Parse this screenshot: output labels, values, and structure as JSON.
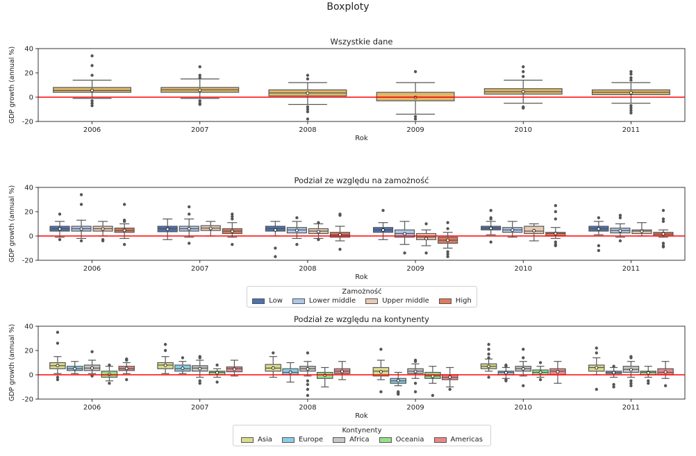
{
  "figure_title": "Boxploty",
  "chart_data": [
    {
      "type": "box",
      "title": "Wszystkie dane",
      "xlabel": "Rok",
      "ylabel": "GDP growth (annual %)",
      "categories": [
        "2006",
        "2007",
        "2008",
        "2009",
        "2010",
        "2011"
      ],
      "ylim": [
        -20,
        40
      ],
      "yticks": [
        -20,
        0,
        20,
        40
      ],
      "reference_line": 0,
      "reference_color": "#ff0000",
      "series": [
        {
          "color": "#e0b86a",
          "boxes": [
            {
              "whislo": -1,
              "q1": 4,
              "med": 5.5,
              "q3": 8,
              "whishi": 14,
              "mean": 5.6,
              "fliers": [
                -3,
                -5,
                -7,
                18,
                26,
                34
              ]
            },
            {
              "whislo": -1,
              "q1": 4,
              "med": 6,
              "q3": 8,
              "whishi": 15,
              "mean": 5.7,
              "fliers": [
                -3,
                -5,
                -6,
                16,
                18,
                25
              ]
            },
            {
              "whislo": -6,
              "q1": 1,
              "med": 3.5,
              "q3": 6,
              "whishi": 12,
              "mean": 3.3,
              "fliers": [
                -8,
                -10,
                -12,
                -18,
                15,
                18
              ]
            },
            {
              "whislo": -14,
              "q1": -3,
              "med": 0,
              "q3": 4,
              "whishi": 12,
              "mean": -0.2,
              "fliers": [
                -16,
                -18,
                21
              ]
            },
            {
              "whislo": -5,
              "q1": 2.5,
              "med": 4.5,
              "q3": 7,
              "whishi": 14,
              "mean": 4.5,
              "fliers": [
                -8,
                -9,
                17,
                21,
                25
              ]
            },
            {
              "whislo": -5,
              "q1": 2,
              "med": 4,
              "q3": 6,
              "whishi": 12,
              "mean": 3.7,
              "fliers": [
                -7,
                -9,
                -11,
                -13,
                14,
                16,
                19,
                21
              ]
            }
          ]
        }
      ]
    },
    {
      "type": "box",
      "title": "Podział ze względu na zamożność",
      "xlabel": "Rok",
      "ylabel": "GDP growth (annual %)",
      "categories": [
        "2006",
        "2007",
        "2008",
        "2009",
        "2010",
        "2011"
      ],
      "ylim": [
        -20,
        40
      ],
      "yticks": [
        -20,
        0,
        20,
        40
      ],
      "reference_line": 0,
      "reference_color": "#ff0000",
      "legend": {
        "title": "Zamożność",
        "placement": "below"
      },
      "series": [
        {
          "name": "Low",
          "color": "#4c72b0",
          "boxes": [
            {
              "whislo": -1,
              "q1": 4,
              "med": 6,
              "q3": 8,
              "whishi": 12,
              "mean": 5.8,
              "fliers": [
                -3,
                18
              ]
            },
            {
              "whislo": -3,
              "q1": 3.5,
              "med": 6,
              "q3": 8,
              "whishi": 14,
              "mean": 5.6,
              "fliers": []
            },
            {
              "whislo": 0,
              "q1": 4,
              "med": 6,
              "q3": 8,
              "whishi": 12,
              "mean": 5,
              "fliers": [
                -10,
                -17
              ]
            },
            {
              "whislo": -3,
              "q1": 3,
              "med": 5,
              "q3": 7,
              "whishi": 11,
              "mean": 4.9,
              "fliers": [
                21
              ]
            },
            {
              "whislo": 1,
              "q1": 5,
              "med": 6.5,
              "q3": 8,
              "whishi": 12,
              "mean": 6.3,
              "fliers": [
                -5,
                14,
                15,
                21
              ]
            },
            {
              "whislo": 1,
              "q1": 4,
              "med": 6,
              "q3": 8,
              "whishi": 12,
              "mean": 5.8,
              "fliers": [
                -8,
                -12,
                15
              ]
            }
          ]
        },
        {
          "name": "Lower middle",
          "color": "#aec7e8",
          "boxes": [
            {
              "whislo": -2,
              "q1": 4,
              "med": 6,
              "q3": 8,
              "whishi": 13,
              "mean": 5.7,
              "fliers": [
                -4,
                26,
                34
              ]
            },
            {
              "whislo": -1,
              "q1": 4,
              "med": 6,
              "q3": 8,
              "whishi": 14,
              "mean": 6,
              "fliers": [
                -6,
                18,
                24
              ]
            },
            {
              "whislo": -2,
              "q1": 2.5,
              "med": 5,
              "q3": 7,
              "whishi": 12,
              "mean": 4.6,
              "fliers": [
                -7,
                15
              ]
            },
            {
              "whislo": -7,
              "q1": -1,
              "med": 2,
              "q3": 5,
              "whishi": 12,
              "mean": 1.8,
              "fliers": [
                -14
              ]
            },
            {
              "whislo": -1,
              "q1": 3,
              "med": 5,
              "q3": 7,
              "whishi": 12,
              "mean": 4.8,
              "fliers": []
            },
            {
              "whislo": -1,
              "q1": 2.5,
              "med": 4.5,
              "q3": 6.5,
              "whishi": 10,
              "mean": 4.2,
              "fliers": [
                -4,
                15,
                17
              ]
            }
          ]
        },
        {
          "name": "Upper middle",
          "color": "#e8c9b3",
          "boxes": [
            {
              "whislo": 0,
              "q1": 4,
              "med": 6,
              "q3": 8,
              "whishi": 12,
              "mean": 5.7,
              "fliers": [
                -3,
                -4
              ]
            },
            {
              "whislo": 0,
              "q1": 4.5,
              "med": 6.5,
              "q3": 8.5,
              "whishi": 12,
              "mean": 6.2,
              "fliers": []
            },
            {
              "whislo": -2,
              "q1": 2,
              "med": 4,
              "q3": 6,
              "whishi": 10,
              "mean": 3.5,
              "fliers": [
                -3,
                11
              ]
            },
            {
              "whislo": -8,
              "q1": -3,
              "med": -1,
              "q3": 2,
              "whishi": 5,
              "mean": -2.2,
              "fliers": [
                -14,
                10
              ]
            },
            {
              "whislo": -4,
              "q1": 2,
              "med": 4,
              "q3": 8,
              "whishi": 10,
              "mean": 4.4,
              "fliers": []
            },
            {
              "whislo": 0,
              "q1": 2,
              "med": 4,
              "q3": 5,
              "whishi": 11,
              "mean": 3.9,
              "fliers": []
            }
          ]
        },
        {
          "name": "High",
          "color": "#e07b5b",
          "boxes": [
            {
              "whislo": -2,
              "q1": 3,
              "med": 4.5,
              "q3": 6.5,
              "whishi": 10,
              "mean": 4.6,
              "fliers": [
                -7,
                12,
                13,
                26
              ]
            },
            {
              "whislo": -1,
              "q1": 2,
              "med": 4,
              "q3": 6,
              "whishi": 11,
              "mean": 3.9,
              "fliers": [
                -7,
                14,
                16,
                18
              ]
            },
            {
              "whislo": -4,
              "q1": -1,
              "med": 1,
              "q3": 3,
              "whishi": 8,
              "mean": 1,
              "fliers": [
                -11,
                17,
                18
              ]
            },
            {
              "whislo": -10,
              "q1": -6,
              "med": -3.5,
              "q3": -1,
              "whishi": 3,
              "mean": -3.5,
              "fliers": [
                -13,
                -15,
                -17,
                6,
                11
              ]
            },
            {
              "whislo": -2,
              "q1": 0,
              "med": 2,
              "q3": 3,
              "whishi": 7,
              "mean": 2,
              "fliers": [
                -5,
                -7,
                -8,
                14,
                20,
                25
              ]
            },
            {
              "whislo": -1,
              "q1": 0,
              "med": 1.5,
              "q3": 3,
              "whishi": 5,
              "mean": 1.7,
              "fliers": [
                -6,
                -8,
                -9,
                12,
                14,
                21
              ]
            }
          ]
        }
      ]
    },
    {
      "type": "box",
      "title": "Podział ze względu na kontynenty",
      "xlabel": "Rok",
      "ylabel": "GDP growth (annual %)",
      "categories": [
        "2006",
        "2007",
        "2008",
        "2009",
        "2010",
        "2011"
      ],
      "ylim": [
        -20,
        40
      ],
      "yticks": [
        -20,
        0,
        20,
        40
      ],
      "reference_line": 0,
      "reference_color": "#ff0000",
      "legend": {
        "title": "Kontynenty",
        "placement": "below"
      },
      "series": [
        {
          "name": "Asia",
          "color": "#dbdb8d",
          "boxes": [
            {
              "whislo": 1,
              "q1": 5,
              "med": 7.5,
              "q3": 10,
              "whishi": 15,
              "mean": 7.6,
              "fliers": [
                -2,
                -4,
                26,
                35
              ]
            },
            {
              "whislo": 1,
              "q1": 5,
              "med": 8,
              "q3": 10,
              "whishi": 15,
              "mean": 7.8,
              "fliers": [
                20,
                25
              ]
            },
            {
              "whislo": -2,
              "q1": 3,
              "med": 5.5,
              "q3": 8.5,
              "whishi": 15,
              "mean": 5.6,
              "fliers": [
                18
              ]
            },
            {
              "whislo": -4,
              "q1": -1,
              "med": 3,
              "q3": 6,
              "whishi": 12,
              "mean": 2.4,
              "fliers": [
                -14,
                21
              ]
            },
            {
              "whislo": 3,
              "q1": 5,
              "med": 7,
              "q3": 9,
              "whishi": 13,
              "mean": 6.9,
              "fliers": [
                -2,
                14,
                17,
                21,
                25
              ]
            },
            {
              "whislo": 0,
              "q1": 3,
              "med": 6,
              "q3": 8,
              "whishi": 14,
              "mean": 5.7,
              "fliers": [
                -12,
                18,
                22
              ]
            }
          ]
        },
        {
          "name": "Europe",
          "color": "#8ccde6",
          "boxes": [
            {
              "whislo": 1,
              "q1": 3.5,
              "med": 5,
              "q3": 7,
              "whishi": 11,
              "mean": 5.1,
              "fliers": []
            },
            {
              "whislo": 1,
              "q1": 3,
              "med": 5,
              "q3": 8,
              "whishi": 11,
              "mean": 5.4,
              "fliers": [
                14
              ]
            },
            {
              "whislo": -6,
              "q1": 0,
              "med": 2,
              "q3": 5,
              "whishi": 10,
              "mean": 2.1,
              "fliers": []
            },
            {
              "whislo": -9,
              "q1": -7,
              "med": -5,
              "q3": -3,
              "whishi": 2,
              "mean": -4.7,
              "fliers": [
                -14,
                -15,
                -16
              ]
            },
            {
              "whislo": -3,
              "q1": 0,
              "med": 2,
              "q3": 3,
              "whishi": 6,
              "mean": 1.7,
              "fliers": [
                -4,
                -5,
                7,
                8
              ]
            },
            {
              "whislo": -2,
              "q1": 1,
              "med": 2,
              "q3": 3,
              "whishi": 6,
              "mean": 1.8,
              "fliers": [
                -8,
                -10,
                7
              ]
            }
          ]
        },
        {
          "name": "Africa",
          "color": "#c7c7c7",
          "boxes": [
            {
              "whislo": 1,
              "q1": 3.5,
              "med": 5.5,
              "q3": 8,
              "whishi": 12,
              "mean": 5.6,
              "fliers": [
                -1,
                19
              ]
            },
            {
              "whislo": -2,
              "q1": 3,
              "med": 5.5,
              "q3": 7.5,
              "whishi": 12,
              "mean": 5.1,
              "fliers": [
                -5,
                -7,
                14,
                15
              ]
            },
            {
              "whislo": -1,
              "q1": 3,
              "med": 5,
              "q3": 7,
              "whishi": 11,
              "mean": 4.9,
              "fliers": [
                -5,
                -8,
                -12,
                -17,
                18
              ]
            },
            {
              "whislo": -3,
              "q1": 1,
              "med": 3,
              "q3": 5,
              "whishi": 9,
              "mean": 2.7,
              "fliers": [
                -7,
                -14,
                11,
                12
              ]
            },
            {
              "whislo": -1,
              "q1": 3,
              "med": 5,
              "q3": 7,
              "whishi": 11,
              "mean": 4.9,
              "fliers": [
                -9,
                14,
                21
              ]
            },
            {
              "whislo": -2,
              "q1": 2,
              "med": 4.5,
              "q3": 7,
              "whishi": 11,
              "mean": 4.2,
              "fliers": [
                -5,
                -7,
                -9,
                14,
                15
              ]
            }
          ]
        },
        {
          "name": "Oceania",
          "color": "#98df8a",
          "boxes": [
            {
              "whislo": -5,
              "q1": -2,
              "med": 0,
              "q3": 3,
              "whishi": 7,
              "mean": 0.3,
              "fliers": [
                -7,
                8
              ]
            },
            {
              "whislo": -2,
              "q1": 0,
              "med": 2,
              "q3": 3,
              "whishi": 5,
              "mean": 1.7,
              "fliers": [
                -6,
                8
              ]
            },
            {
              "whislo": -10,
              "q1": -3,
              "med": 0,
              "q3": 2,
              "whishi": 6,
              "mean": -0.4,
              "fliers": []
            },
            {
              "whislo": -7,
              "q1": -3,
              "med": -1,
              "q3": 2,
              "whishi": 7,
              "mean": -1.3,
              "fliers": [
                -17
              ]
            },
            {
              "whislo": -2,
              "q1": 0,
              "med": 2,
              "q3": 4,
              "whishi": 7,
              "mean": 2,
              "fliers": [
                -4,
                10
              ]
            },
            {
              "whislo": -2,
              "q1": 0,
              "med": 2,
              "q3": 3,
              "whishi": 7,
              "mean": 1.6,
              "fliers": [
                -5,
                -7
              ]
            }
          ]
        },
        {
          "name": "Americas",
          "color": "#e8888a",
          "boxes": [
            {
              "whislo": 1,
              "q1": 3.5,
              "med": 5,
              "q3": 7,
              "whishi": 10,
              "mean": 5.2,
              "fliers": [
                -4,
                12,
                13
              ]
            },
            {
              "whislo": -1,
              "q1": 2.5,
              "med": 5,
              "q3": 6.5,
              "whishi": 12,
              "mean": 4.6,
              "fliers": []
            },
            {
              "whislo": -4,
              "q1": 1,
              "med": 3,
              "q3": 5,
              "whishi": 11,
              "mean": 2.8,
              "fliers": []
            },
            {
              "whislo": -10,
              "q1": -4,
              "med": -2,
              "q3": 0,
              "whishi": 6,
              "mean": -2,
              "fliers": [
                -12
              ]
            },
            {
              "whislo": -7,
              "q1": 0,
              "med": 3,
              "q3": 5,
              "whishi": 11,
              "mean": 2.6,
              "fliers": []
            },
            {
              "whislo": -3,
              "q1": 0,
              "med": 2,
              "q3": 5,
              "whishi": 11,
              "mean": 2.3,
              "fliers": [
                -9
              ]
            }
          ]
        }
      ]
    }
  ]
}
